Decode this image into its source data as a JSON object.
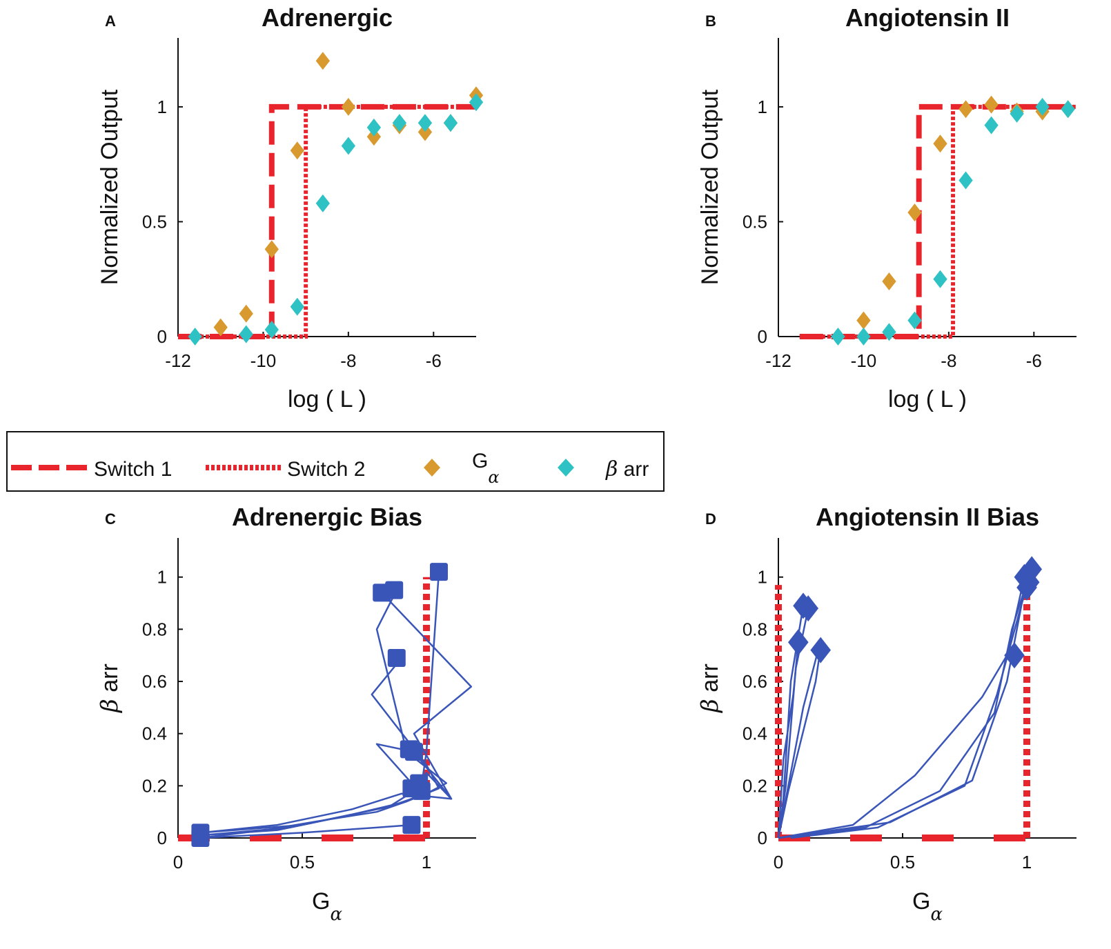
{
  "colors": {
    "switch": "#e8252c",
    "g_alpha": "#d89a2e",
    "beta_arr": "#2ec2c4",
    "bias": "#3a55b8",
    "axis": "#111111"
  },
  "legend": {
    "switch1": "Switch 1",
    "switch2": "Switch 2",
    "g_alpha_main": "G",
    "g_alpha_sub": "α",
    "beta_arr_greek": "β",
    "beta_arr_text": " arr"
  },
  "chart_data": [
    {
      "panel": "A",
      "type": "scatter",
      "title": "Adrenergic",
      "xlabel": "log ( L )",
      "ylabel": "Normalized Output",
      "xlim": [
        -12,
        -5
      ],
      "ylim": [
        0,
        1.3
      ],
      "xticks": [
        -12,
        -10,
        -8,
        -6
      ],
      "xtick_labels": [
        "-12",
        "-10",
        "-8",
        "-6"
      ],
      "yticks": [
        0,
        0.5,
        1
      ],
      "ytick_labels": [
        "0",
        "0.5",
        "1"
      ],
      "switch1": {
        "x_start": -12,
        "x_step": -9.8,
        "x_end": -5,
        "y_low": 0,
        "y_high": 1
      },
      "switch2": {
        "x_start": -12,
        "x_step": -9,
        "x_end": -5,
        "y_low": 0,
        "y_high": 1
      },
      "series": [
        {
          "name": "Gα",
          "x": [
            -11.0,
            -10.4,
            -9.8,
            -9.2,
            -8.6,
            -8.0,
            -7.4,
            -6.8,
            -6.2,
            -5.6,
            -5.0
          ],
          "y": [
            0.04,
            0.1,
            0.38,
            0.81,
            1.2,
            1.0,
            0.87,
            0.92,
            0.89,
            0.93,
            1.05
          ]
        },
        {
          "name": "β arr",
          "x": [
            -11.6,
            -10.4,
            -9.8,
            -9.2,
            -8.6,
            -8.0,
            -7.4,
            -6.8,
            -6.2,
            -5.6,
            -5.0
          ],
          "y": [
            0.0,
            0.01,
            0.03,
            0.13,
            0.58,
            0.83,
            0.91,
            0.93,
            0.93,
            0.93,
            1.02
          ]
        }
      ]
    },
    {
      "panel": "B",
      "type": "scatter",
      "title": "Angiotensin II",
      "xlabel": "log ( L )",
      "ylabel": "Normalized Output",
      "xlim": [
        -12,
        -5
      ],
      "ylim": [
        0,
        1.3
      ],
      "xticks": [
        -12,
        -10,
        -8,
        -6
      ],
      "xtick_labels": [
        "-12",
        "-10",
        "-8",
        "-6"
      ],
      "yticks": [
        0,
        0.5,
        1
      ],
      "ytick_labels": [
        "0",
        "0.5",
        "1"
      ],
      "switch1": {
        "x_start": -11.5,
        "x_step": -8.7,
        "x_end": -5,
        "y_low": 0,
        "y_high": 1
      },
      "switch2": {
        "x_start": -11.5,
        "x_step": -7.9,
        "x_end": -5,
        "y_low": 0,
        "y_high": 1
      },
      "series": [
        {
          "name": "Gα",
          "x": [
            -10.0,
            -9.4,
            -8.8,
            -8.2,
            -7.6,
            -7.0,
            -6.4,
            -5.8,
            -5.2
          ],
          "y": [
            0.07,
            0.24,
            0.54,
            0.84,
            0.99,
            1.01,
            0.98,
            0.98,
            0.99
          ]
        },
        {
          "name": "β arr",
          "x": [
            -10.6,
            -10.0,
            -9.4,
            -8.8,
            -8.2,
            -7.6,
            -7.0,
            -6.4,
            -5.8,
            -5.2
          ],
          "y": [
            0.0,
            0.0,
            0.02,
            0.07,
            0.25,
            0.68,
            0.92,
            0.97,
            1.0,
            0.99
          ]
        }
      ]
    },
    {
      "panel": "C",
      "type": "line",
      "title": "Adrenergic Bias",
      "xlabel_main": "G",
      "xlabel_sub": "α",
      "ylabel_greek": "β",
      "ylabel_text": " arr",
      "xlim": [
        0,
        1.2
      ],
      "ylim": [
        0,
        1.15
      ],
      "xticks": [
        0,
        0.5,
        1
      ],
      "xtick_labels": [
        "0",
        "0.5",
        "1"
      ],
      "yticks": [
        0,
        0.2,
        0.4,
        0.6,
        0.8,
        1
      ],
      "ytick_labels": [
        "0",
        "0.2",
        "0.4",
        "0.6",
        "0.8",
        "1"
      ],
      "switch1": {
        "x_from": 0,
        "x_to": 1,
        "y": 0
      },
      "switch2": {
        "x": 1,
        "y_from": 0,
        "y_to": 1.0
      },
      "marker": "square",
      "lines": [
        {
          "x": [
            0.09,
            0.35,
            0.6,
            0.8,
            0.92,
            0.96,
            0.98,
            1.0,
            1.05
          ],
          "y": [
            0.0,
            0.03,
            0.07,
            0.1,
            0.14,
            0.16,
            0.2,
            0.33,
            1.02
          ]
        },
        {
          "x": [
            0.09,
            0.4,
            0.65,
            0.85,
            0.95,
            1.0,
            1.1,
            0.95,
            1.18,
            0.82
          ],
          "y": [
            0.01,
            0.03,
            0.08,
            0.12,
            0.18,
            0.25,
            0.15,
            0.4,
            0.58,
            0.94
          ]
        },
        {
          "x": [
            0.09,
            0.45,
            0.7,
            0.88,
            1.0,
            1.08,
            0.92,
            0.8,
            0.88
          ],
          "y": [
            0.01,
            0.04,
            0.09,
            0.13,
            0.17,
            0.21,
            0.33,
            0.8,
            0.95
          ]
        },
        {
          "x": [
            0.09,
            0.5,
            0.75,
            0.92,
            1.05,
            1.0,
            0.78,
            0.9
          ],
          "y": [
            0.02,
            0.05,
            0.1,
            0.14,
            0.19,
            0.28,
            0.55,
            0.69
          ]
        },
        {
          "x": [
            0.09,
            0.4,
            0.7,
            0.9,
            1.1,
            0.95,
            0.8,
            0.95
          ],
          "y": [
            0.02,
            0.05,
            0.11,
            0.17,
            0.15,
            0.33,
            0.36,
            0.2
          ]
        },
        {
          "x": [
            0.09,
            0.5,
            0.8,
            0.94
          ],
          "y": [
            0.0,
            0.02,
            0.04,
            0.05
          ]
        }
      ],
      "markers": {
        "x": [
          0.09,
          0.09,
          0.94,
          0.94,
          0.87,
          0.82,
          1.05,
          0.88,
          0.93,
          0.95,
          0.98,
          0.97
        ],
        "y": [
          0.0,
          0.02,
          0.05,
          0.19,
          0.95,
          0.94,
          1.02,
          0.69,
          0.34,
          0.33,
          0.18,
          0.21
        ]
      }
    },
    {
      "panel": "D",
      "type": "line",
      "title": "Angiotensin II Bias",
      "xlabel_main": "G",
      "xlabel_sub": "α",
      "ylabel_greek": "β",
      "ylabel_text": " arr",
      "xlim": [
        0,
        1.2
      ],
      "ylim": [
        0,
        1.15
      ],
      "xticks": [
        0,
        0.5,
        1
      ],
      "xtick_labels": [
        "0",
        "0.5",
        "1"
      ],
      "yticks": [
        0,
        0.2,
        0.4,
        0.6,
        0.8,
        1
      ],
      "ytick_labels": [
        "0",
        "0.2",
        "0.4",
        "0.6",
        "0.8",
        "1"
      ],
      "switch1": {
        "x_from": 0,
        "x_to": 1,
        "y": 0
      },
      "switch2_left": {
        "x": 0,
        "y_from": 0,
        "y_to": 0.97
      },
      "switch2_right": {
        "x": 1,
        "y_from": 0,
        "y_to": 0.97
      },
      "marker": "diamond",
      "lines": [
        {
          "x": [
            0.0,
            0.02,
            0.05,
            0.1
          ],
          "y": [
            0.0,
            0.15,
            0.6,
            0.89
          ]
        },
        {
          "x": [
            0.0,
            0.03,
            0.07,
            0.12
          ],
          "y": [
            0.0,
            0.2,
            0.65,
            0.88
          ]
        },
        {
          "x": [
            0.0,
            0.05,
            0.1,
            0.16
          ],
          "y": [
            0.0,
            0.25,
            0.5,
            0.72
          ]
        },
        {
          "x": [
            0.0,
            0.02,
            0.06,
            0.08
          ],
          "y": [
            0.0,
            0.3,
            0.55,
            0.75
          ]
        },
        {
          "x": [
            0.0,
            0.04,
            0.15,
            0.17
          ],
          "y": [
            0.0,
            0.18,
            0.6,
            0.73
          ]
        },
        {
          "x": [
            0.0,
            0.3,
            0.55,
            0.82,
            0.92,
            0.99
          ],
          "y": [
            0.0,
            0.05,
            0.24,
            0.54,
            0.7,
            1.0
          ]
        },
        {
          "x": [
            0.0,
            0.35,
            0.65,
            0.87,
            0.94,
            1.0
          ],
          "y": [
            0.0,
            0.04,
            0.18,
            0.48,
            0.8,
            0.98
          ]
        },
        {
          "x": [
            0.05,
            0.4,
            0.75,
            0.88,
            0.98,
            1.02
          ],
          "y": [
            0.0,
            0.04,
            0.2,
            0.55,
            0.9,
            1.02
          ]
        },
        {
          "x": [
            0.0,
            0.45,
            0.78,
            0.92,
            1.0
          ],
          "y": [
            0.0,
            0.06,
            0.22,
            0.6,
            1.0
          ]
        }
      ],
      "markers": {
        "x": [
          0.1,
          0.12,
          0.08,
          0.17,
          0.95,
          0.99,
          1.01,
          1.02,
          1.0
        ],
        "y": [
          0.89,
          0.88,
          0.75,
          0.72,
          0.7,
          1.0,
          0.98,
          1.03,
          0.96
        ]
      }
    }
  ]
}
